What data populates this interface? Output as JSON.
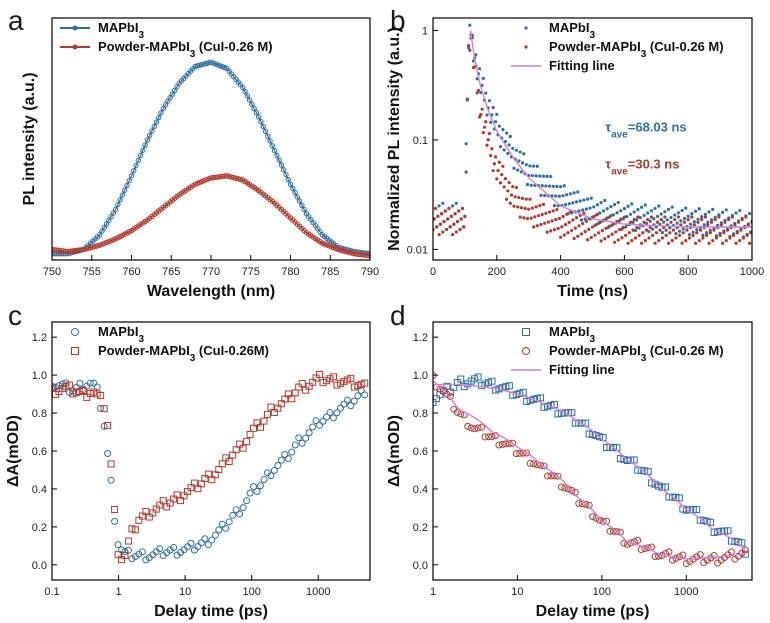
{
  "colors": {
    "blue": "#2f6fa3",
    "red": "#b13a2e",
    "fit": "#d27fe0",
    "axis": "#000000"
  },
  "chart_data": [
    {
      "panel": "a",
      "type": "line",
      "title": "",
      "xlabel": "Wavelength (nm)",
      "ylabel": "PL intensity (a.u.)",
      "xlim": [
        750,
        790
      ],
      "ylim": [
        0,
        1.15
      ],
      "xticks": [
        750,
        755,
        760,
        765,
        770,
        775,
        780,
        785,
        790
      ],
      "yticks": [],
      "legend_position": "top-left",
      "series": [
        {
          "name": "MAPbI",
          "sub": "3",
          "suffix": "",
          "color": "blue",
          "marker": "circle",
          "x": [
            750,
            752,
            754,
            756,
            758,
            760,
            762,
            764,
            766,
            768,
            770,
            772,
            774,
            776,
            778,
            780,
            782,
            784,
            786,
            788,
            790
          ],
          "y": [
            0.03,
            0.03,
            0.05,
            0.12,
            0.24,
            0.4,
            0.57,
            0.72,
            0.84,
            0.92,
            0.94,
            0.91,
            0.82,
            0.68,
            0.52,
            0.36,
            0.22,
            0.12,
            0.06,
            0.04,
            0.03
          ]
        },
        {
          "name": "Powder-MAPbI",
          "sub": "3",
          "suffix": " (CuI-0.26 M)",
          "color": "red",
          "marker": "circle",
          "x": [
            750,
            752,
            754,
            756,
            758,
            760,
            762,
            764,
            766,
            768,
            770,
            772,
            774,
            776,
            778,
            780,
            782,
            784,
            786,
            788,
            790
          ],
          "y": [
            0.05,
            0.04,
            0.05,
            0.07,
            0.1,
            0.14,
            0.19,
            0.25,
            0.31,
            0.36,
            0.39,
            0.4,
            0.38,
            0.33,
            0.27,
            0.2,
            0.13,
            0.08,
            0.05,
            0.03,
            0.02
          ]
        }
      ]
    },
    {
      "panel": "b",
      "type": "scatter",
      "title": "",
      "xlabel": "Time (ns)",
      "ylabel": "Normalized PL intensity (a.u.)",
      "xlim": [
        0,
        1000
      ],
      "ylim": [
        0.008,
        1.3
      ],
      "yscale": "log",
      "xticks": [
        0,
        200,
        400,
        600,
        800,
        1000
      ],
      "yticks": [
        0.01,
        0.1,
        1
      ],
      "ytick_labels": [
        "0.01",
        "0.1",
        "1"
      ],
      "legend_position": "top-right",
      "annotations": [
        {
          "text_main": "τ",
          "text_sub": "ave",
          "text_val": "=68.03 ns",
          "color": "blue",
          "x": 540,
          "y": 0.12
        },
        {
          "text_main": "τ",
          "text_sub": "ave",
          "text_val": "=30.3 ns",
          "color": "red",
          "x": 540,
          "y": 0.055
        }
      ],
      "series": [
        {
          "name": "MAPbI",
          "sub": "3",
          "suffix": "",
          "color": "blue",
          "marker": "dot",
          "x": [
            0,
            20,
            40,
            60,
            80,
            100,
            110,
            118,
            125,
            135,
            150,
            175,
            200,
            250,
            300,
            400,
            500,
            600,
            800,
            1000
          ],
          "y": [
            0.02,
            0.02,
            0.02,
            0.02,
            0.02,
            0.02,
            0.6,
            1.0,
            0.75,
            0.5,
            0.32,
            0.2,
            0.13,
            0.075,
            0.05,
            0.03,
            0.022,
            0.02,
            0.018,
            0.017
          ]
        },
        {
          "name": "Powder-MAPbI",
          "sub": "3",
          "suffix": " (CuI-0.26 M)",
          "color": "red",
          "marker": "dot",
          "x": [
            0,
            20,
            40,
            60,
            80,
            100,
            110,
            118,
            125,
            135,
            150,
            175,
            200,
            250,
            300,
            400,
            500,
            600,
            800,
            1000
          ],
          "y": [
            0.018,
            0.018,
            0.018,
            0.018,
            0.018,
            0.018,
            0.55,
            1.0,
            0.6,
            0.35,
            0.18,
            0.09,
            0.055,
            0.03,
            0.022,
            0.017,
            0.016,
            0.015,
            0.015,
            0.015
          ]
        },
        {
          "name": "Fitting line",
          "sub": "",
          "suffix": "",
          "color": "fit",
          "marker": "line",
          "x": [
            118,
            125,
            135,
            150,
            175,
            200,
            250,
            300,
            400,
            500,
            600,
            800,
            1000
          ],
          "y": [
            1.0,
            0.7,
            0.47,
            0.3,
            0.18,
            0.12,
            0.07,
            0.045,
            0.025,
            0.019,
            0.017,
            0.016,
            0.016
          ]
        }
      ]
    },
    {
      "panel": "c",
      "type": "scatter",
      "title": "",
      "xlabel": "Delay time (ps)",
      "ylabel": "ΔA(mOD)",
      "xscale": "log",
      "xlim": [
        0.1,
        6000
      ],
      "ylim": [
        -0.08,
        1.28
      ],
      "xticks": [
        0.1,
        1,
        10,
        100,
        1000
      ],
      "xtick_labels": [
        "0.1",
        "1",
        "10",
        "100",
        "1000"
      ],
      "yticks": [
        0.0,
        0.2,
        0.4,
        0.6,
        0.8,
        1.0,
        1.2
      ],
      "ytick_labels": [
        "0.0",
        "0.2",
        "0.4",
        "0.6",
        "0.8",
        "1.0",
        "1.2"
      ],
      "legend_position": "top-left",
      "series": [
        {
          "name": "MAPbI",
          "sub": "3",
          "suffix": "",
          "color": "blue",
          "marker": "circle",
          "x": [
            0.1,
            0.15,
            0.2,
            0.3,
            0.4,
            0.5,
            0.6,
            0.7,
            0.8,
            0.9,
            1.0,
            1.2,
            1.5,
            2,
            3,
            5,
            10,
            20,
            50,
            100,
            200,
            500,
            1000,
            2000,
            5000
          ],
          "y": [
            0.95,
            0.94,
            0.92,
            0.95,
            0.96,
            0.9,
            0.75,
            0.55,
            0.38,
            0.2,
            0.1,
            0.06,
            0.05,
            0.05,
            0.05,
            0.07,
            0.08,
            0.12,
            0.25,
            0.38,
            0.5,
            0.65,
            0.75,
            0.82,
            0.92
          ]
        },
        {
          "name": "Powder-MAPbI",
          "sub": "3",
          "suffix": " (CuI-0.26M)",
          "color": "red",
          "marker": "square",
          "x": [
            0.1,
            0.15,
            0.2,
            0.3,
            0.4,
            0.5,
            0.6,
            0.7,
            0.8,
            0.9,
            1.0,
            1.2,
            1.5,
            2,
            3,
            5,
            10,
            20,
            50,
            100,
            200,
            500,
            1000,
            2000,
            5000
          ],
          "y": [
            0.92,
            0.93,
            0.92,
            0.9,
            0.92,
            0.88,
            0.85,
            0.72,
            0.45,
            0.2,
            0.05,
            0.03,
            0.15,
            0.24,
            0.28,
            0.32,
            0.38,
            0.45,
            0.58,
            0.7,
            0.82,
            0.93,
            0.98,
            0.97,
            0.94
          ]
        }
      ]
    },
    {
      "panel": "d",
      "type": "scatter",
      "title": "",
      "xlabel": "Delay time (ps)",
      "ylabel": "ΔA(mOD)",
      "xscale": "log",
      "xlim": [
        1,
        6000
      ],
      "ylim": [
        -0.08,
        1.28
      ],
      "xticks": [
        1,
        10,
        100,
        1000
      ],
      "xtick_labels": [
        "1",
        "10",
        "100",
        "1000"
      ],
      "yticks": [
        0.0,
        0.2,
        0.4,
        0.6,
        0.8,
        1.0,
        1.2
      ],
      "ytick_labels": [
        "0.0",
        "0.2",
        "0.4",
        "0.6",
        "0.8",
        "1.0",
        "1.2"
      ],
      "legend_position": "top-right",
      "series": [
        {
          "name": "MAPbI",
          "sub": "3",
          "suffix": "",
          "color": "blue",
          "marker": "square",
          "x": [
            1,
            1.5,
            2,
            3,
            5,
            10,
            20,
            50,
            100,
            200,
            500,
            1000,
            2000,
            5000
          ],
          "y": [
            0.88,
            0.92,
            0.96,
            0.97,
            0.95,
            0.9,
            0.85,
            0.76,
            0.65,
            0.55,
            0.4,
            0.3,
            0.2,
            0.08
          ]
        },
        {
          "name": "Powder-MAPbI",
          "sub": "3",
          "suffix": " (CuI-0.26 M)",
          "color": "red",
          "marker": "circle",
          "x": [
            1,
            1.5,
            2,
            3,
            5,
            10,
            20,
            50,
            100,
            200,
            500,
            1000,
            2000,
            5000
          ],
          "y": [
            0.98,
            0.88,
            0.8,
            0.72,
            0.67,
            0.6,
            0.5,
            0.35,
            0.22,
            0.12,
            0.05,
            0.03,
            0.03,
            0.06
          ]
        },
        {
          "name": "Fitting line",
          "sub": "",
          "suffix": "",
          "color": "fit",
          "marker": "line",
          "x": [
            1,
            2,
            5,
            10,
            20,
            50,
            100,
            200,
            500,
            1000,
            2000,
            5000
          ],
          "y": [
            0.95,
            0.95,
            0.93,
            0.9,
            0.85,
            0.76,
            0.66,
            0.55,
            0.4,
            0.29,
            0.19,
            0.08
          ]
        },
        {
          "name": "",
          "sub": "",
          "suffix": "",
          "color": "fit",
          "marker": "line",
          "x": [
            1,
            2,
            5,
            10,
            20,
            50,
            100,
            200,
            500,
            1000,
            2000,
            5000
          ],
          "y": [
            0.97,
            0.82,
            0.7,
            0.62,
            0.52,
            0.36,
            0.23,
            0.12,
            0.05,
            0.03,
            0.04,
            0.06
          ]
        }
      ]
    }
  ]
}
